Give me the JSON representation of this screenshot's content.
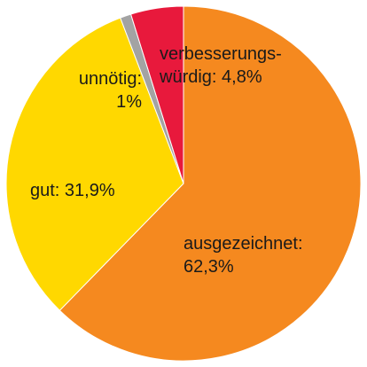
{
  "chart_data": {
    "type": "pie",
    "categories": [
      "ausgezeichnet:",
      "gut:",
      "unnötig:",
      "verbesserungs-würdig:"
    ],
    "values": [
      62.3,
      31.9,
      1,
      4.8
    ],
    "value_labels": [
      "62,3%",
      "31,9%",
      "1%",
      "4,8%"
    ],
    "colors": [
      "#f5891f",
      "#ffd800",
      "#a3a3a3",
      "#e8193c"
    ]
  }
}
